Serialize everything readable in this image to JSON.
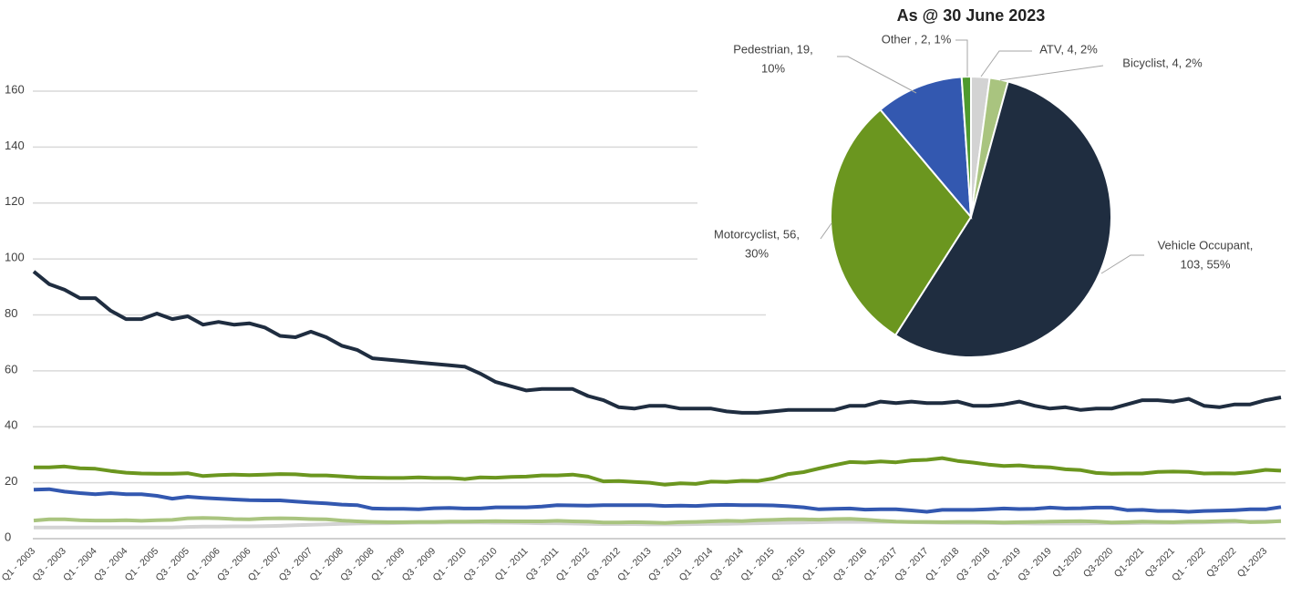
{
  "chart_data": [
    {
      "type": "line",
      "categories": [
        "Q1 - 2003",
        null,
        "Q3 - 2003",
        null,
        "Q1 - 2004",
        null,
        "Q3 - 2004",
        null,
        "Q1 - 2005",
        null,
        "Q3 - 2005",
        null,
        "Q1 - 2006",
        null,
        "Q3 - 2006",
        null,
        "Q1 - 2007",
        null,
        "Q3 - 2007",
        null,
        "Q1 - 2008",
        null,
        "Q3 - 2008",
        null,
        "Q1 - 2009",
        null,
        "Q3 - 2009",
        null,
        "Q1 - 2010",
        null,
        "Q3 - 2010",
        null,
        "Q1 - 2011",
        null,
        "Q3 - 2011",
        null,
        "Q1 - 2012",
        null,
        "Q3 - 2012",
        null,
        "Q1 - 2013",
        null,
        "Q3 - 2013",
        null,
        "Q1 - 2014",
        null,
        "Q3 - 2014",
        null,
        "Q1 - 2015",
        null,
        "Q3 - 2015",
        null,
        "Q1 - 2016",
        null,
        "Q3 - 2016",
        null,
        "Q1 - 2017",
        null,
        "Q3 - 2017",
        null,
        "Q1 - 2018",
        null,
        "Q3 - 2018",
        null,
        "Q1 - 2019",
        null,
        "Q3 - 2019",
        null,
        "Q1-2020",
        null,
        "Q3-2020",
        null,
        "Q1-2021",
        null,
        "Q3-2021",
        null,
        "Q1 - 2022",
        null,
        "Q3-2022",
        null,
        "Q1-2023",
        null
      ],
      "series": [
        {
          "color": "#d3d3d3",
          "values": [
            4,
            4,
            4,
            4,
            4,
            4,
            4,
            4,
            4,
            4,
            4.2,
            4.3,
            4.3,
            4.4,
            4.4,
            4.5,
            4.6,
            4.8,
            5,
            5.1,
            5.3,
            5.4,
            5.5,
            5.5,
            5.6,
            5.7,
            5.7,
            5.8,
            5.8,
            5.8,
            5.7,
            5.7,
            5.6,
            5.5,
            5.5,
            5.4,
            5.3,
            5.2,
            5.2,
            5.2,
            5.1,
            5.1,
            5.1,
            5.2,
            5.3,
            5.3,
            5.4,
            5.5,
            5.6,
            5.7,
            5.8,
            5.9,
            6,
            6,
            6,
            6,
            6,
            5.9,
            5.8,
            5.7,
            5.6,
            5.6,
            5.6,
            5.5,
            5.5,
            5.4,
            5.4,
            5.4,
            5.4,
            5.5,
            5.5,
            5.5,
            5.6,
            5.6,
            5.6,
            5.7,
            5.8,
            5.9,
            6,
            6.1,
            6.2,
            6.3
          ]
        },
        {
          "color": "#a9c47f",
          "values": [
            6.5,
            6.9,
            6.9,
            6.6,
            6.5,
            6.5,
            6.6,
            6.4,
            6.6,
            6.7,
            7.3,
            7.4,
            7.3,
            7,
            6.9,
            7.2,
            7.3,
            7.2,
            7,
            6.9,
            6.5,
            6.2,
            6,
            5.9,
            5.9,
            6,
            6,
            6.1,
            6.1,
            6.2,
            6.3,
            6.2,
            6.2,
            6.2,
            6.4,
            6.2,
            6.1,
            5.8,
            5.8,
            5.9,
            5.8,
            5.6,
            5.9,
            6,
            6.2,
            6.4,
            6.3,
            6.6,
            6.7,
            6.9,
            6.9,
            6.8,
            7,
            7.1,
            6.8,
            6.4,
            6.1,
            6,
            6,
            5.9,
            6,
            6,
            5.9,
            5.8,
            5.9,
            6,
            6.1,
            6.2,
            6.3,
            6.1,
            5.8,
            5.9,
            6.1,
            6,
            5.9,
            6.1,
            6.1,
            6.3,
            6.4,
            5.9,
            6,
            6.3
          ]
        },
        {
          "color": "#3358b0",
          "values": [
            17.5,
            17.7,
            16.8,
            16.3,
            15.9,
            16.3,
            15.9,
            15.9,
            15.3,
            14.3,
            15,
            14.6,
            14.3,
            14,
            13.8,
            13.7,
            13.7,
            13.3,
            12.9,
            12.6,
            12.2,
            12,
            10.8,
            10.7,
            10.7,
            10.5,
            10.9,
            11,
            10.8,
            10.8,
            11.2,
            11.2,
            11.2,
            11.5,
            12,
            11.9,
            11.8,
            12,
            12,
            12,
            12,
            11.7,
            11.8,
            11.7,
            12,
            12.1,
            12,
            12,
            11.9,
            11.6,
            11.2,
            10.5,
            10.7,
            10.8,
            10.4,
            10.5,
            10.5,
            10.1,
            9.6,
            10.3,
            10.3,
            10.3,
            10.5,
            10.8,
            10.6,
            10.7,
            11.1,
            10.8,
            10.9,
            11.1,
            11.1,
            10.2,
            10.3,
            9.9,
            9.9,
            9.6,
            9.9,
            10,
            10.2,
            10.5,
            10.5,
            11.3
          ]
        },
        {
          "color": "#6b961f",
          "values": [
            25.5,
            25.5,
            25.8,
            25.2,
            25,
            24.2,
            23.6,
            23.3,
            23.2,
            23.2,
            23.4,
            22.4,
            22.7,
            22.9,
            22.7,
            22.9,
            23.1,
            23,
            22.6,
            22.6,
            22.3,
            21.9,
            21.8,
            21.7,
            21.7,
            21.9,
            21.7,
            21.7,
            21.3,
            21.9,
            21.8,
            22.1,
            22.2,
            22.6,
            22.6,
            22.9,
            22.2,
            20.5,
            20.6,
            20.3,
            20,
            19.3,
            19.8,
            19.6,
            20.4,
            20.3,
            20.7,
            20.6,
            21.5,
            23.1,
            23.8,
            25.1,
            26.3,
            27.4,
            27.2,
            27.6,
            27.3,
            28,
            28.2,
            28.8,
            27.8,
            27.2,
            26.5,
            26,
            26.2,
            25.7,
            25.5,
            24.8,
            24.5,
            23.5,
            23.2,
            23.3,
            23.3,
            23.9,
            24,
            23.9,
            23.3,
            23.4,
            23.3,
            23.8,
            24.6,
            24.3
          ]
        },
        {
          "color": "#1f2d40",
          "values": [
            95.5,
            91,
            89,
            86,
            86,
            81.5,
            78.5,
            78.5,
            80.5,
            78.5,
            79.5,
            76.5,
            77.5,
            76.5,
            77,
            75.5,
            72.5,
            72,
            74,
            72,
            69,
            67.5,
            64.5,
            64,
            63.5,
            63,
            62.5,
            62,
            61.5,
            59,
            56,
            54.5,
            53,
            53.5,
            53.5,
            53.5,
            51,
            49.5,
            47,
            46.5,
            47.5,
            47.5,
            46.5,
            46.5,
            46.5,
            45.5,
            45,
            45,
            45.5,
            46,
            46,
            46,
            46,
            47.5,
            47.5,
            49,
            48.5,
            49,
            48.5,
            48.5,
            49,
            47.5,
            47.5,
            48,
            49,
            47.5,
            46.5,
            47,
            46,
            46.5,
            46.5,
            48,
            49.5,
            49.5,
            49,
            50,
            47.5,
            47,
            48,
            48,
            49.5,
            50.5
          ]
        }
      ],
      "ylim": [
        0,
        160
      ],
      "yticks": [
        0,
        20,
        40,
        60,
        80,
        100,
        120,
        140,
        160
      ],
      "grid": true
    },
    {
      "type": "pie",
      "title": "As @ 30 June 2023",
      "labels": [
        [
          "ATV, 4, 2%"
        ],
        [
          "Bicyclist, 4, 2%"
        ],
        [
          "Vehicle Occupant,",
          "103, 55%"
        ],
        [
          "Motorcyclist, 56,",
          "30%"
        ],
        [
          "Pedestrian, 19,",
          "10%"
        ],
        [
          "Other , 2, 1%"
        ]
      ],
      "values": [
        4,
        4,
        103,
        56,
        19,
        2
      ],
      "colors": [
        "#d3d3d3",
        "#a9c47f",
        "#1f2d40",
        "#6b961f",
        "#3358b0",
        "#4e9a2e"
      ]
    }
  ]
}
